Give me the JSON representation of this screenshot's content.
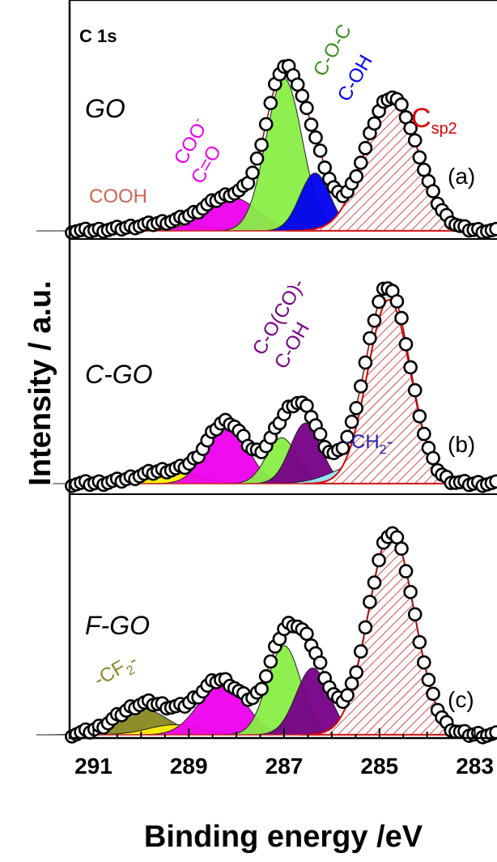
{
  "chart_data": {
    "type": "line",
    "xlabel": "Binding energy /eV",
    "ylabel": "Intensity / a.u.",
    "xlim": [
      291.5,
      282.5
    ],
    "x_reversed": true,
    "xticks": [
      291,
      289,
      287,
      285,
      283
    ],
    "corner_label": "C 1s",
    "panels": [
      {
        "id": "a",
        "sample": "GO",
        "tag": "(a)",
        "components": [
          {
            "name": "COOH",
            "center": 289.4,
            "height": 0.05,
            "width": 0.7,
            "color": "#ffee00"
          },
          {
            "name": "COO- C=O",
            "center": 288.1,
            "height": 0.22,
            "width": 0.55,
            "color": "#ee00ee"
          },
          {
            "name": "C-O-C",
            "center": 287.0,
            "height": 1.0,
            "width": 0.38,
            "color": "#88ee44"
          },
          {
            "name": "C-OH",
            "center": 286.35,
            "height": 0.38,
            "width": 0.32,
            "color": "#0000ee"
          },
          {
            "name": "Csp2",
            "center": 284.75,
            "height": 0.88,
            "width": 0.55,
            "color": "#cc2222",
            "hatched": true
          }
        ],
        "labels": [
          {
            "text": "COOH",
            "color": "#cc6655"
          },
          {
            "text": "COO",
            "sup": "-",
            "color": "#ee00ee"
          },
          {
            "text": "C=O",
            "color": "#ee00ee"
          },
          {
            "text": "C-O-C",
            "color": "#3d8f1e"
          },
          {
            "text": "C-OH",
            "color": "#0000ee"
          },
          {
            "text": "C",
            "sub": "sp2",
            "color": "#dd0000"
          }
        ]
      },
      {
        "id": "b",
        "sample": "C-GO",
        "tag": "(b)",
        "components": [
          {
            "name": "COOH",
            "center": 289.45,
            "height": 0.07,
            "width": 0.6,
            "color": "#ffee00"
          },
          {
            "name": "COO- C=O",
            "center": 288.2,
            "height": 0.33,
            "width": 0.42,
            "color": "#ee00ee"
          },
          {
            "name": "C-O-C",
            "center": 287.05,
            "height": 0.25,
            "width": 0.32,
            "color": "#88ee44"
          },
          {
            "name": "C-O(CO)- C-OH",
            "center": 286.55,
            "height": 0.33,
            "width": 0.32,
            "color": "#770088"
          },
          {
            "name": "-CH2-",
            "center": 285.35,
            "height": 0.11,
            "width": 0.6,
            "color": "#99eeff"
          },
          {
            "name": "Csp2",
            "center": 284.8,
            "height": 1.0,
            "width": 0.45,
            "color": "#cc2222",
            "hatched": true
          }
        ],
        "labels": [
          {
            "text": "C-O(CO)-",
            "color": "#770088"
          },
          {
            "text": "C-OH",
            "color": "#770088"
          },
          {
            "text": "-CH",
            "sub": "2",
            "suffix": "-",
            "color": "#2222aa"
          }
        ]
      },
      {
        "id": "c",
        "sample": "F-GO",
        "tag": "(c)",
        "components": [
          {
            "name": "-CF2-",
            "center": 290.0,
            "height": 0.13,
            "width": 0.55,
            "color": "#888822"
          },
          {
            "name": "COOH",
            "center": 289.3,
            "height": 0.05,
            "width": 0.55,
            "color": "#ffee00"
          },
          {
            "name": "COO- C=O",
            "center": 288.3,
            "height": 0.26,
            "width": 0.48,
            "color": "#ee00ee"
          },
          {
            "name": "C-O-C",
            "center": 287.0,
            "height": 0.44,
            "width": 0.35,
            "color": "#88ee44"
          },
          {
            "name": "C-OH",
            "center": 286.4,
            "height": 0.33,
            "width": 0.35,
            "color": "#770088"
          },
          {
            "name": "Csp2",
            "center": 284.75,
            "height": 1.0,
            "width": 0.48,
            "color": "#cc2222",
            "hatched": true
          }
        ],
        "labels": [
          {
            "text": "-CF",
            "sub": "2",
            "suffix": "-",
            "color": "#888822"
          }
        ]
      }
    ]
  }
}
